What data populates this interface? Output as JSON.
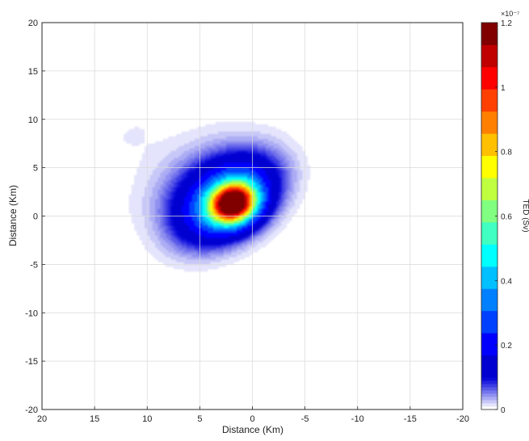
{
  "chart_data": {
    "type": "heatmap",
    "title": "",
    "xlabel": "Distance (Km)",
    "ylabel": "Distance (Km)",
    "xlim": [
      20,
      -20
    ],
    "ylim": [
      -20,
      20
    ],
    "x_reversed": true,
    "grid": true,
    "x_ticks": [
      20,
      15,
      10,
      5,
      0,
      -5,
      -10,
      -15,
      -20
    ],
    "x_tick_labels": [
      "20",
      "15",
      "10",
      "5",
      "0",
      "-5",
      "-10",
      "-15",
      "-20"
    ],
    "y_ticks": [
      20,
      15,
      10,
      5,
      0,
      -5,
      -10,
      -15,
      -20
    ],
    "y_tick_labels": [
      "20",
      "15",
      "10",
      "5",
      "0",
      "-5",
      "-10",
      "-15",
      "-20"
    ],
    "colorbar": {
      "label": "TED (Sv)",
      "exponent_label": "×10⁻⁷",
      "min": 0,
      "max": 1.2,
      "ticks": [
        0,
        0.2,
        0.4,
        0.6,
        0.8,
        1,
        1.2
      ],
      "tick_labels": [
        "0",
        "0.2",
        "0.4",
        "0.6",
        "0.8",
        "1",
        "1.2"
      ],
      "colormap": "jet",
      "low_colors": [
        "#ffffff",
        "#e4e4fc",
        "#c8c8f8",
        "#acacf4",
        "#9090f0",
        "#7474ec",
        "#5858e8",
        "#3c3ce4",
        "#2020e0",
        "#0a0ad8"
      ],
      "high_colors": [
        "#0000d0",
        "#0000ff",
        "#0040ff",
        "#0080ff",
        "#00c0ff",
        "#00ffff",
        "#40ffc0",
        "#80ff80",
        "#c0ff40",
        "#ffff00",
        "#ffc000",
        "#ff8000",
        "#ff4000",
        "#ff0000",
        "#c00000",
        "#800000"
      ]
    },
    "plume": {
      "peak_x": 1.8,
      "peak_y": 1.3,
      "peak_value": 1.2,
      "units": "1e-7 Sv",
      "lobes": [
        {
          "x": 1.8,
          "y": 1.3,
          "sx": 1.5,
          "sy": 1.3,
          "rot": -35,
          "a": 1.12
        },
        {
          "x": 2.5,
          "y": 1.7,
          "sx": 3.3,
          "sy": 2.2,
          "rot": -40,
          "a": 0.42
        },
        {
          "x": 6.0,
          "y": 4.3,
          "sx": 4.0,
          "sy": 2.3,
          "rot": -40,
          "a": 0.035
        },
        {
          "x": 11.5,
          "y": 8.5,
          "sx": 3.2,
          "sy": 2.0,
          "rot": -40,
          "a": 0.01
        }
      ]
    }
  }
}
